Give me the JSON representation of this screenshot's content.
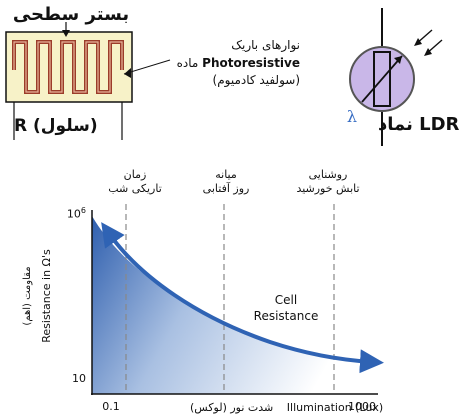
{
  "resistor_panel": {
    "substrate_label": "بستر سطحی",
    "cell_label": "R (سلول)",
    "strip_label": "نوارهای باریک",
    "material_prefix": "ماده",
    "material_name": "Photoresistive",
    "material_note": "(سولفید کادمیوم)",
    "substrate_color": "#f7f2c8",
    "track_color": "#9b3c2a"
  },
  "symbol_panel": {
    "label": "نماد LDR",
    "lambda": "λ",
    "circle_fill": "#c9b7e8",
    "light_color": "#3a6fc4"
  },
  "graph": {
    "annotations": {
      "night_line1": "زمان",
      "night_line2": "تاریکی شب",
      "day_line1": "میانه",
      "day_line2": "روز آفتابی",
      "sun_line1": "روشنایی",
      "sun_line2": "تابش خورشید"
    },
    "y_axis_label_en": "Resistance in Ω's",
    "y_axis_label_fa": "مقاومت (اهم)",
    "y_tick_top": "10",
    "y_tick_top_exp": "6",
    "y_tick_bottom": "10",
    "x_tick_min": "0.1",
    "x_tick_max": "1000",
    "x_axis_label_fa": "شدت نور (لوکس)",
    "x_axis_label_en": "Illumination (Lux)",
    "curve_label_line1": "Cell",
    "curve_label_line2": "Resistance",
    "curve_color": "#2f63b4",
    "fill_dark": "#2f5fae",
    "fill_light": "#ffffff"
  }
}
